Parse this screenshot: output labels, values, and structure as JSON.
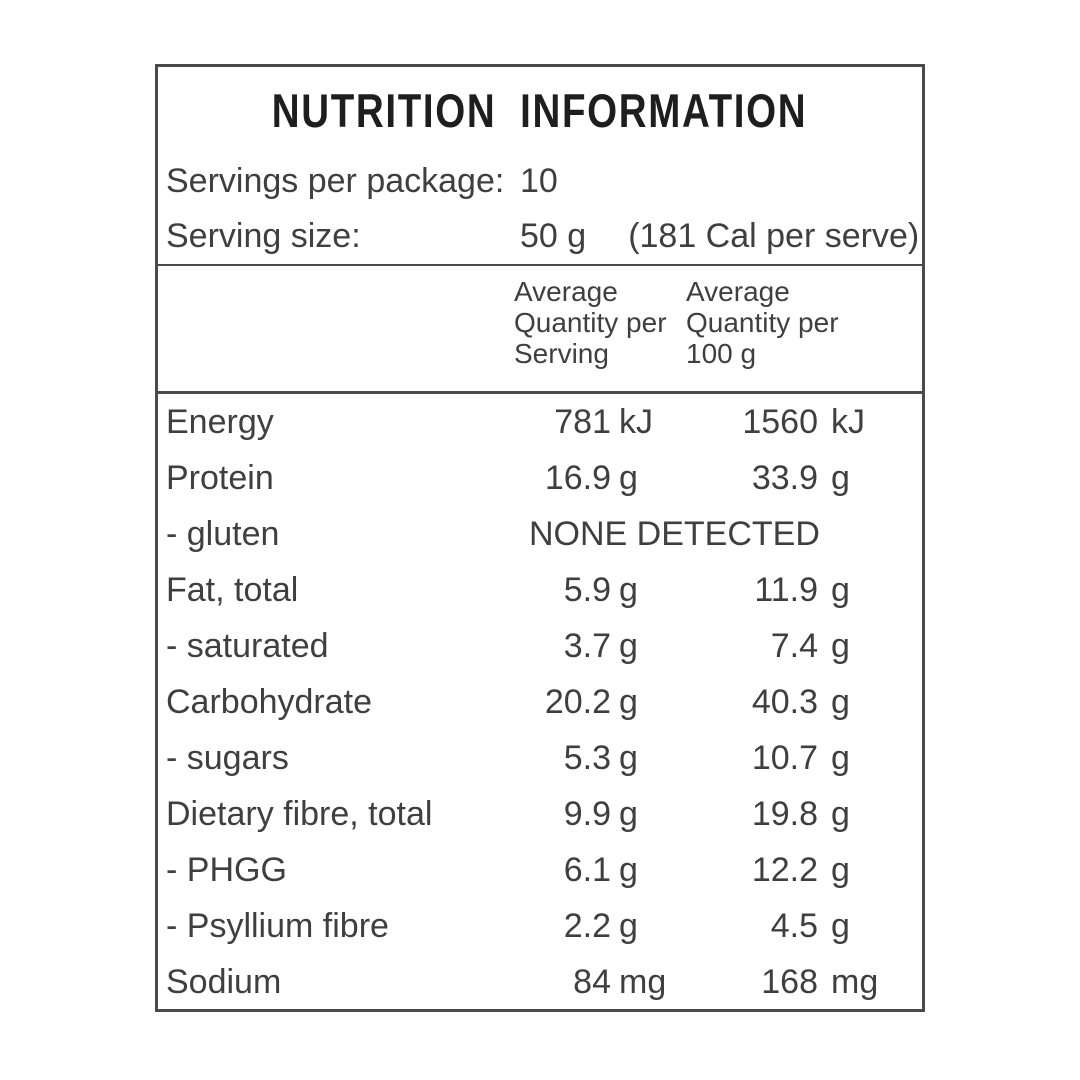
{
  "title": "NUTRITION INFORMATION",
  "serving_info": {
    "servings_label": "Servings per package:",
    "servings_value": "10",
    "size_label": "Serving size:",
    "size_value": "50 g",
    "size_note": "(181 Cal per serve)"
  },
  "table": {
    "col_headers": {
      "per_serving": "Average\nQuantity per\nServing",
      "per_100g": "Average\nQuantity per\n100 g"
    },
    "rows": [
      {
        "label": "Energy",
        "v1": "781",
        "u1": "kJ",
        "v2": "1560",
        "u2": "kJ"
      },
      {
        "label": "Protein",
        "v1": "16.9",
        "u1": "g",
        "v2": "33.9",
        "u2": "g"
      },
      {
        "label": "- gluten",
        "span": "NONE DETECTED"
      },
      {
        "label": "Fat, total",
        "v1": "5.9",
        "u1": "g",
        "v2": "11.9",
        "u2": "g"
      },
      {
        "label": "- saturated",
        "v1": "3.7",
        "u1": "g",
        "v2": "7.4",
        "u2": "g"
      },
      {
        "label": "Carbohydrate",
        "v1": "20.2",
        "u1": "g",
        "v2": "40.3",
        "u2": "g"
      },
      {
        "label": "- sugars",
        "v1": "5.3",
        "u1": "g",
        "v2": "10.7",
        "u2": "g"
      },
      {
        "label": "Dietary fibre, total",
        "v1": "9.9",
        "u1": "g",
        "v2": "19.8",
        "u2": "g"
      },
      {
        "label": "- PHGG",
        "v1": "6.1",
        "u1": "g",
        "v2": "12.2",
        "u2": "g"
      },
      {
        "label": "- Psyllium fibre",
        "v1": "2.2",
        "u1": "g",
        "v2": "4.5",
        "u2": "g"
      },
      {
        "label": "Sodium",
        "v1": "84",
        "u1": "mg",
        "v2": "168",
        "u2": "mg"
      }
    ]
  },
  "colors": {
    "border": "#4a4a4a",
    "text": "#3f3f3f",
    "title_text": "#1e1e1e",
    "background": "#ffffff"
  }
}
